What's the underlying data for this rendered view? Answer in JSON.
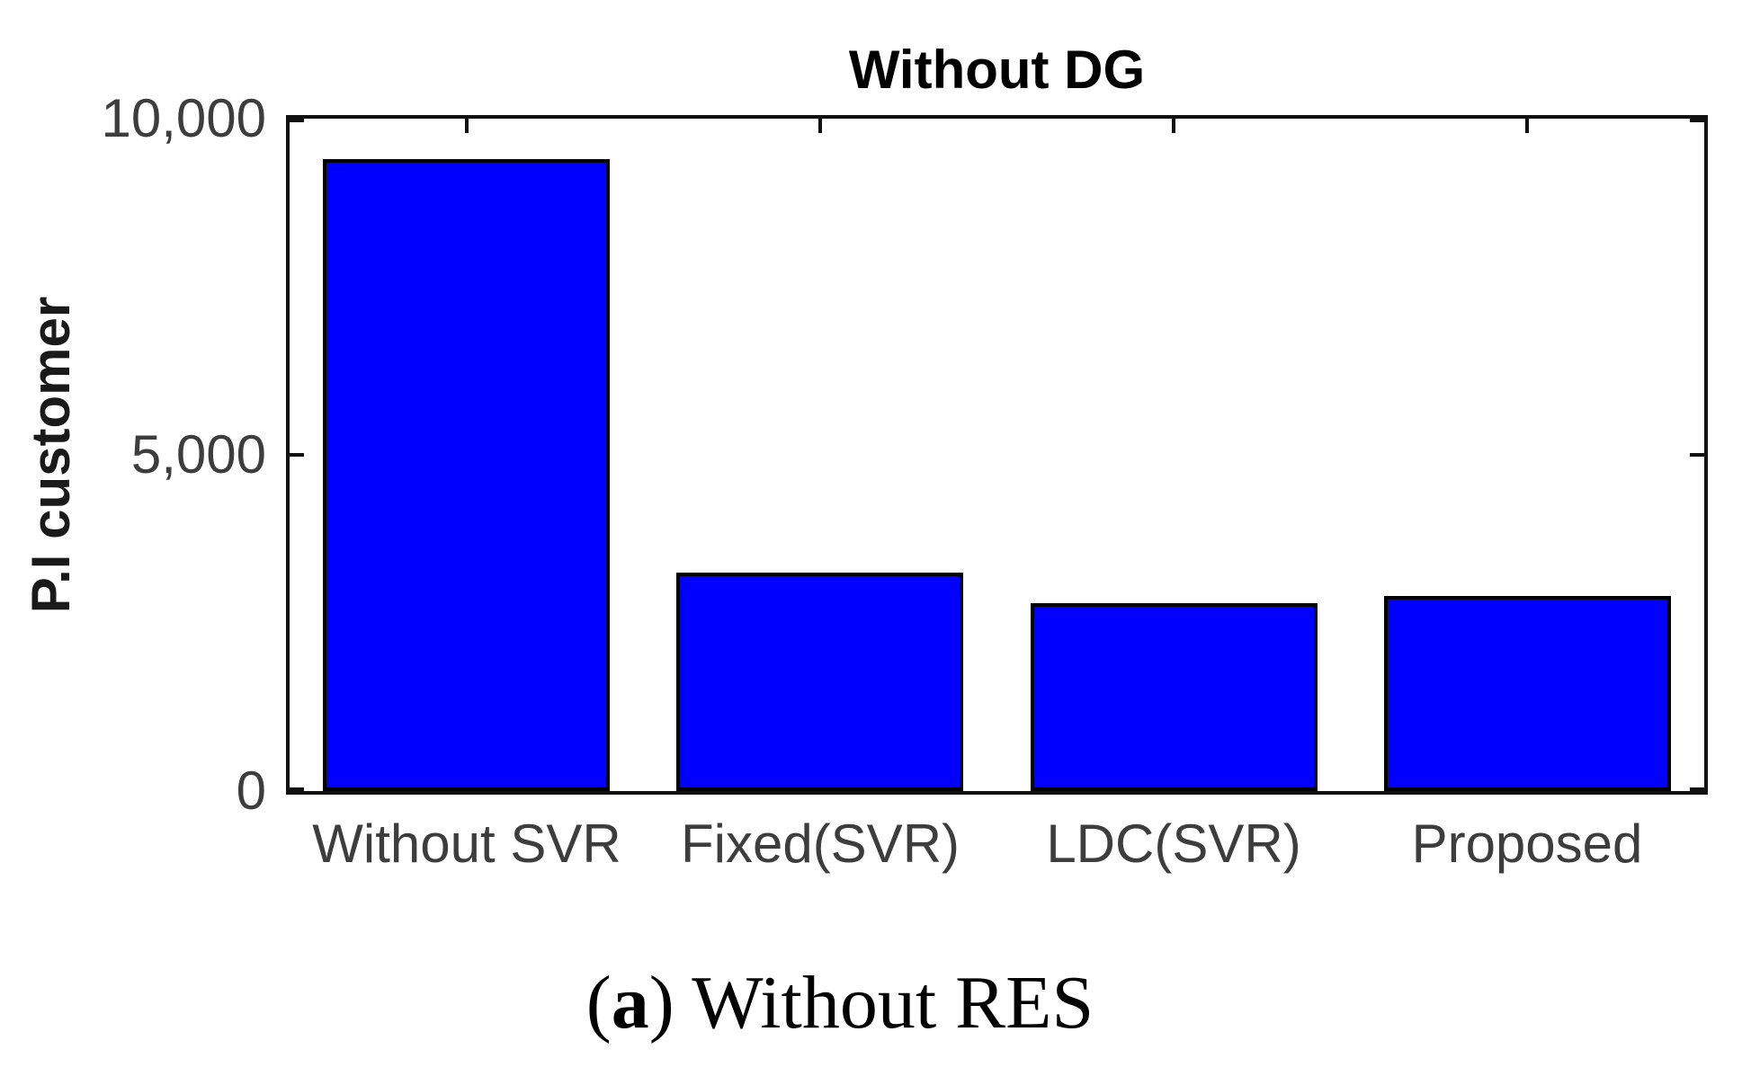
{
  "figure": {
    "caption": {
      "open": "(",
      "marker": "a",
      "close": ") ",
      "text": "Without RES"
    }
  },
  "chart_data": {
    "type": "bar",
    "title": "Without DG",
    "xlabel": "",
    "ylabel": "P.I customer",
    "categories": [
      "Without SVR",
      "Fixed(SVR)",
      "LDC(SVR)",
      "Proposed"
    ],
    "values": [
      9400,
      3250,
      2800,
      2900
    ],
    "ylim": [
      0,
      10000
    ],
    "yticks": [
      0,
      5000,
      10000
    ],
    "ytick_labels": [
      "0",
      "5,000",
      "10,000"
    ],
    "bar_color": "#0000fe",
    "bar_edge_color": "#000000",
    "axis_color": "#111111",
    "grid": false,
    "legend": "none"
  }
}
